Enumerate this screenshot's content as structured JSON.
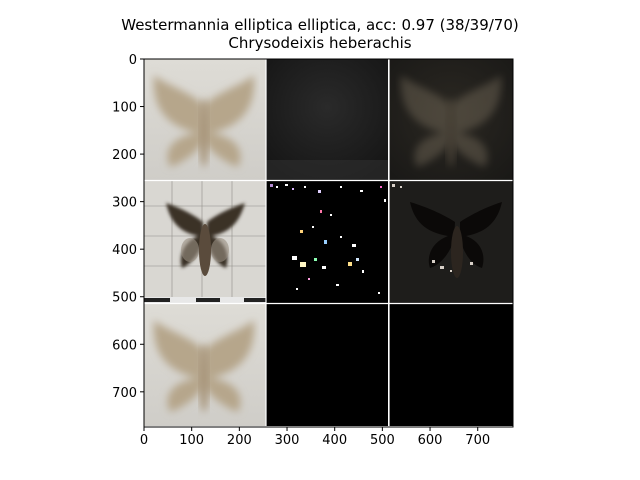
{
  "figure": {
    "title_line1": "Westermannia elliptica elliptica, acc: 0.97 (38/39/70)",
    "title_line2": "Chrysodeixis heberachis"
  },
  "chart_data": {
    "type": "image-grid",
    "rows": 3,
    "cols": 3,
    "xlim": [
      0,
      774
    ],
    "ylim": [
      774,
      0
    ],
    "xticks": [
      0,
      100,
      200,
      300,
      400,
      500,
      600,
      700
    ],
    "yticks": [
      0,
      100,
      200,
      300,
      400,
      500,
      600,
      700
    ],
    "tiles": [
      {
        "row": 0,
        "col": 0,
        "content": "blurred moth (beige, light background)"
      },
      {
        "row": 0,
        "col": 1,
        "content": "dark noisy gradient map"
      },
      {
        "row": 0,
        "col": 2,
        "content": "dark overlay of moth"
      },
      {
        "row": 1,
        "col": 0,
        "content": "moth specimen photo on grid paper"
      },
      {
        "row": 1,
        "col": 1,
        "content": "sparse colorful saliency on black"
      },
      {
        "row": 1,
        "col": 2,
        "content": "darkened moth specimen overlay"
      },
      {
        "row": 2,
        "col": 0,
        "content": "blurred moth (beige, light background)"
      },
      {
        "row": 2,
        "col": 1,
        "content": "black"
      },
      {
        "row": 2,
        "col": 2,
        "content": "black"
      }
    ]
  },
  "colors": {
    "grid_line": "#ffffff",
    "axis": "#000000",
    "moth_light": "#b9a98e",
    "moth_dark": "#3a3129"
  }
}
